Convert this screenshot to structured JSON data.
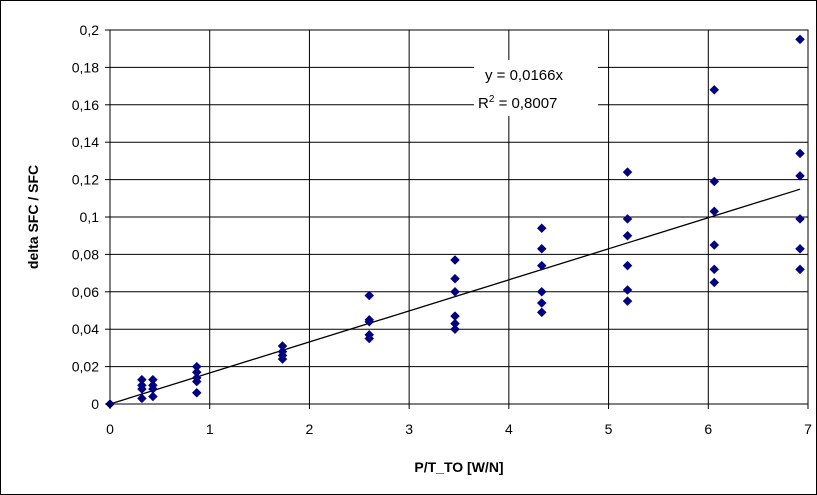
{
  "chart_data": {
    "type": "scatter",
    "xlabel": "P/T_TO [W/N]",
    "ylabel": "delta SFC / SFC",
    "xlim": [
      0,
      7
    ],
    "ylim": [
      0,
      0.2
    ],
    "x_ticks": [
      "0",
      "1",
      "2",
      "3",
      "4",
      "5",
      "6",
      "7"
    ],
    "y_ticks": [
      "0",
      "0,02",
      "0,04",
      "0,06",
      "0,08",
      "0,1",
      "0,12",
      "0,14",
      "0,16",
      "0,18",
      "0,2"
    ],
    "grid": true,
    "legend": "none",
    "marker_color": "#000080",
    "trendline": {
      "type": "linear",
      "slope": 0.0166,
      "intercept": 0,
      "equation": "y = 0,0166x",
      "r2_prefix": "R",
      "r2_sup": "2",
      "r2_value": " = 0,8007"
    },
    "points": [
      {
        "x": 0,
        "y": 0
      },
      {
        "x": 0.32,
        "y": 0.003
      },
      {
        "x": 0.32,
        "y": 0.008
      },
      {
        "x": 0.32,
        "y": 0.01
      },
      {
        "x": 0.32,
        "y": 0.013
      },
      {
        "x": 0.43,
        "y": 0.004
      },
      {
        "x": 0.43,
        "y": 0.008
      },
      {
        "x": 0.43,
        "y": 0.01
      },
      {
        "x": 0.43,
        "y": 0.013
      },
      {
        "x": 0.87,
        "y": 0.006
      },
      {
        "x": 0.87,
        "y": 0.012
      },
      {
        "x": 0.87,
        "y": 0.014
      },
      {
        "x": 0.87,
        "y": 0.017
      },
      {
        "x": 0.87,
        "y": 0.02
      },
      {
        "x": 1.73,
        "y": 0.024
      },
      {
        "x": 1.73,
        "y": 0.026
      },
      {
        "x": 1.73,
        "y": 0.028
      },
      {
        "x": 1.73,
        "y": 0.031
      },
      {
        "x": 2.6,
        "y": 0.035
      },
      {
        "x": 2.6,
        "y": 0.037
      },
      {
        "x": 2.6,
        "y": 0.044
      },
      {
        "x": 2.6,
        "y": 0.045
      },
      {
        "x": 2.6,
        "y": 0.058
      },
      {
        "x": 3.46,
        "y": 0.04
      },
      {
        "x": 3.46,
        "y": 0.043
      },
      {
        "x": 3.46,
        "y": 0.047
      },
      {
        "x": 3.46,
        "y": 0.06
      },
      {
        "x": 3.46,
        "y": 0.067
      },
      {
        "x": 3.46,
        "y": 0.077
      },
      {
        "x": 4.33,
        "y": 0.049
      },
      {
        "x": 4.33,
        "y": 0.054
      },
      {
        "x": 4.33,
        "y": 0.06
      },
      {
        "x": 4.33,
        "y": 0.074
      },
      {
        "x": 4.33,
        "y": 0.083
      },
      {
        "x": 4.33,
        "y": 0.094
      },
      {
        "x": 5.19,
        "y": 0.055
      },
      {
        "x": 5.19,
        "y": 0.061
      },
      {
        "x": 5.19,
        "y": 0.074
      },
      {
        "x": 5.19,
        "y": 0.09
      },
      {
        "x": 5.19,
        "y": 0.099
      },
      {
        "x": 5.19,
        "y": 0.124
      },
      {
        "x": 6.06,
        "y": 0.065
      },
      {
        "x": 6.06,
        "y": 0.072
      },
      {
        "x": 6.06,
        "y": 0.085
      },
      {
        "x": 6.06,
        "y": 0.103
      },
      {
        "x": 6.06,
        "y": 0.119
      },
      {
        "x": 6.06,
        "y": 0.168
      },
      {
        "x": 6.92,
        "y": 0.072
      },
      {
        "x": 6.92,
        "y": 0.083
      },
      {
        "x": 6.92,
        "y": 0.099
      },
      {
        "x": 6.92,
        "y": 0.122
      },
      {
        "x": 6.92,
        "y": 0.134
      },
      {
        "x": 6.92,
        "y": 0.195
      }
    ]
  }
}
